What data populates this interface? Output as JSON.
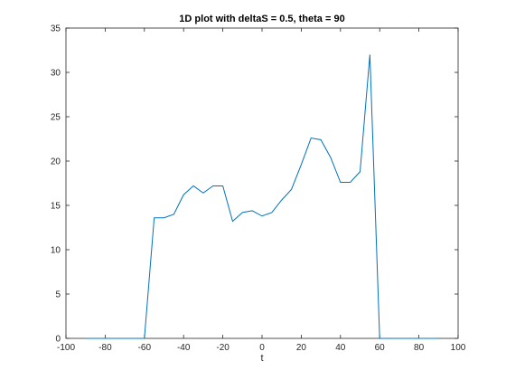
{
  "chart_data": {
    "type": "line",
    "title": "1D plot with deltaS = 0.5, theta = 90",
    "xlabel": "t",
    "ylabel": "",
    "xlim": [
      -100,
      100
    ],
    "ylim": [
      0,
      35
    ],
    "xticks": [
      -100,
      -80,
      -60,
      -40,
      -20,
      0,
      20,
      40,
      60,
      80,
      100
    ],
    "yticks": [
      0,
      5,
      10,
      15,
      20,
      25,
      30,
      35
    ],
    "xtick_labels": [
      "-100",
      "-80",
      "-60",
      "-40",
      "-20",
      "0",
      "20",
      "40",
      "60",
      "80",
      "100"
    ],
    "ytick_labels": [
      "0",
      "5",
      "10",
      "15",
      "20",
      "25",
      "30",
      "35"
    ],
    "grid": false,
    "series": [
      {
        "color": "#0072BD",
        "x": [
          -90,
          -85,
          -80,
          -75,
          -70,
          -65,
          -60,
          -55,
          -50,
          -45,
          -40,
          -35,
          -30,
          -25,
          -20,
          -15,
          -10,
          -5,
          0,
          5,
          10,
          15,
          20,
          25,
          30,
          35,
          40,
          45,
          50,
          55,
          60,
          65,
          70,
          75,
          80,
          85,
          90
        ],
        "y": [
          0,
          0,
          0,
          0,
          0,
          0,
          0,
          13.6,
          13.6,
          14.0,
          16.2,
          17.2,
          16.4,
          17.2,
          17.2,
          13.2,
          14.2,
          14.4,
          13.8,
          14.2,
          15.6,
          16.8,
          19.6,
          22.6,
          22.4,
          20.4,
          17.6,
          17.6,
          18.8,
          32.0,
          0,
          0,
          0,
          0,
          0,
          0,
          0
        ]
      }
    ]
  },
  "colors": {
    "axis": "#262626",
    "line": "#0072BD",
    "background": "#ffffff"
  }
}
